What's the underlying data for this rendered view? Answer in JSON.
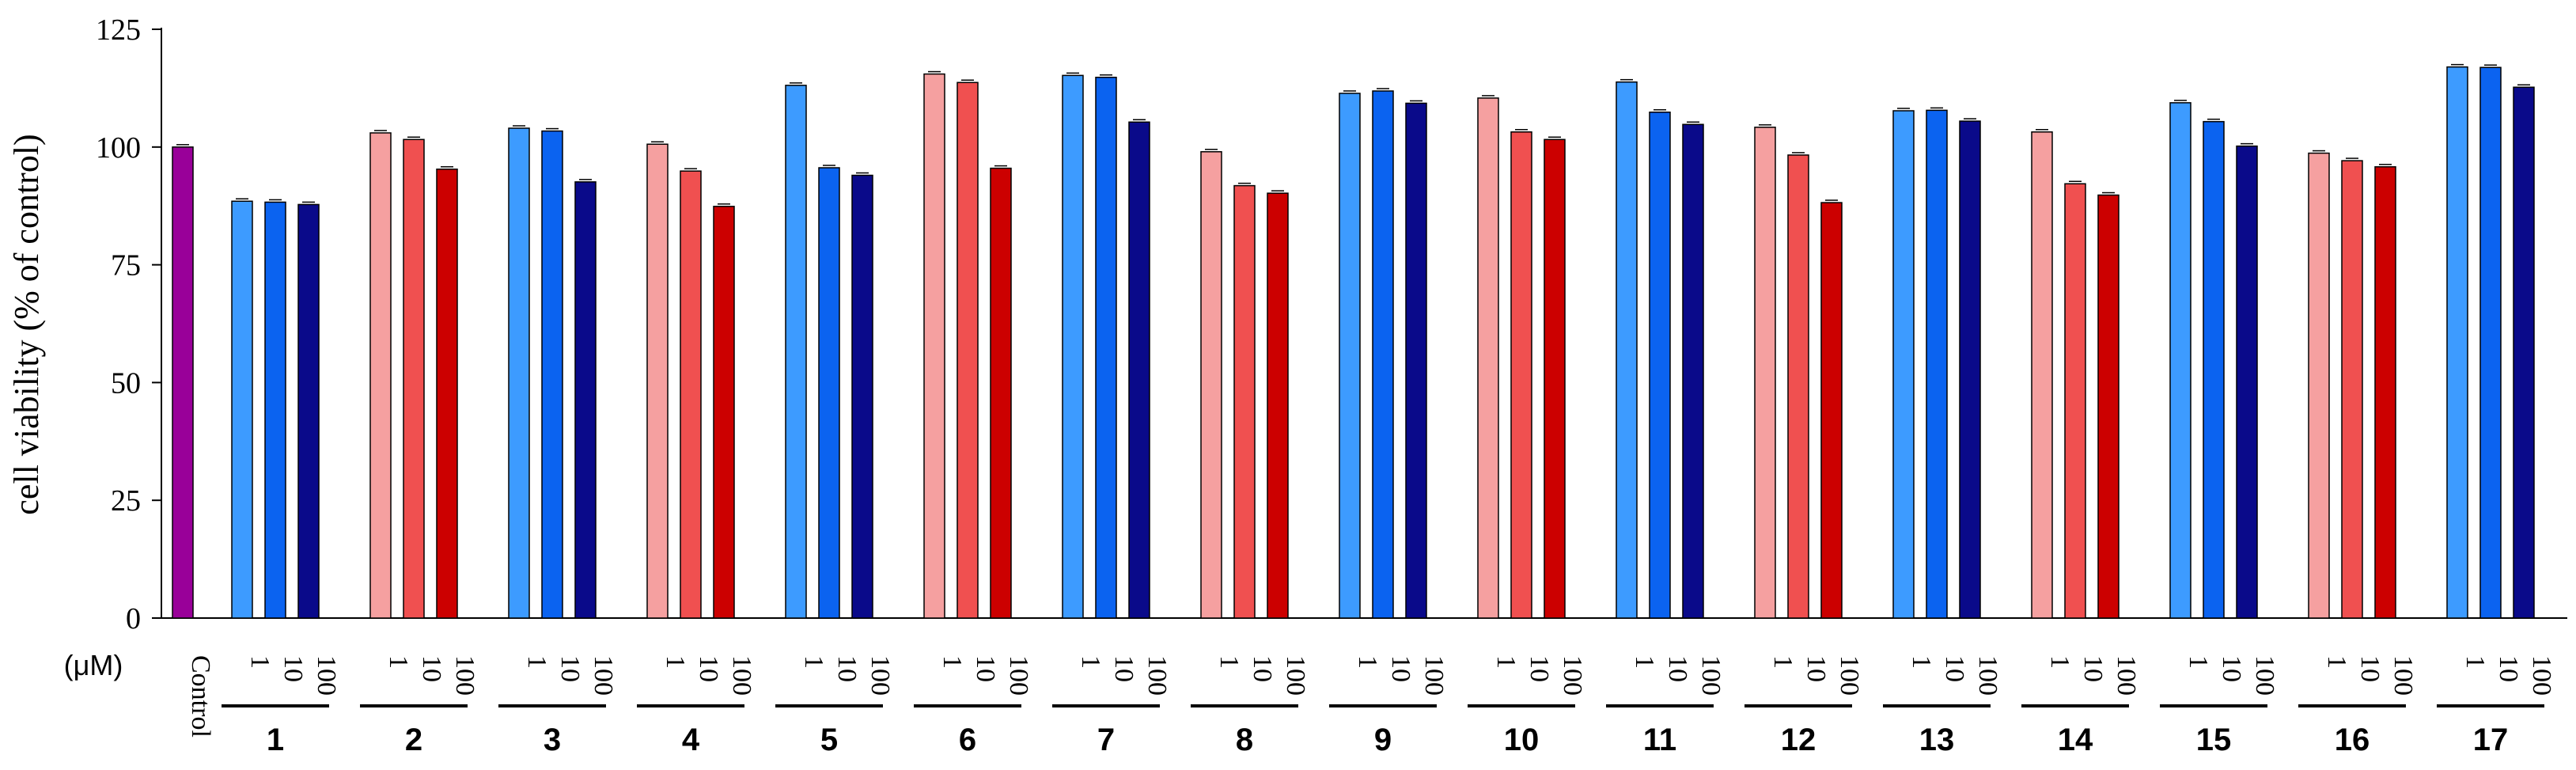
{
  "chart_data": {
    "type": "bar",
    "title": "",
    "xlabel": "",
    "ylabel": "cell viability (% of control)",
    "ylim": [
      0,
      125
    ],
    "yticks": [
      0,
      25,
      50,
      75,
      100,
      125
    ],
    "grid": false,
    "unit_label": "(μM)",
    "control": {
      "label": "Control",
      "value": 100,
      "color": "#990099"
    },
    "concentrations": [
      "1",
      "10",
      "100"
    ],
    "palettes": {
      "blue": [
        "#3d9bff",
        "#0b63f0",
        "#0a0a8a"
      ],
      "red": [
        "#f5a0a0",
        "#f05050",
        "#cc0000"
      ]
    },
    "groups": [
      {
        "label": "1",
        "palette": "blue",
        "values": [
          88.5,
          88.3,
          87.8
        ]
      },
      {
        "label": "2",
        "palette": "red",
        "values": [
          103.0,
          101.6,
          95.3
        ]
      },
      {
        "label": "3",
        "palette": "blue",
        "values": [
          104.0,
          103.4,
          92.6
        ]
      },
      {
        "label": "4",
        "palette": "red",
        "values": [
          100.6,
          94.9,
          87.4
        ]
      },
      {
        "label": "5",
        "palette": "blue",
        "values": [
          113.1,
          95.6,
          94.0
        ]
      },
      {
        "label": "6",
        "palette": "red",
        "values": [
          115.5,
          113.7,
          95.5
        ]
      },
      {
        "label": "7",
        "palette": "blue",
        "values": [
          115.2,
          114.8,
          105.3
        ]
      },
      {
        "label": "8",
        "palette": "red",
        "values": [
          99.0,
          91.8,
          90.2
        ]
      },
      {
        "label": "9",
        "palette": "blue",
        "values": [
          111.4,
          111.9,
          109.3
        ]
      },
      {
        "label": "10",
        "palette": "red",
        "values": [
          110.4,
          103.2,
          101.6
        ]
      },
      {
        "label": "11",
        "palette": "blue",
        "values": [
          113.8,
          107.4,
          104.8
        ]
      },
      {
        "label": "12",
        "palette": "red",
        "values": [
          104.2,
          98.3,
          88.2
        ]
      },
      {
        "label": "13",
        "palette": "blue",
        "values": [
          107.7,
          107.8,
          105.5
        ]
      },
      {
        "label": "14",
        "palette": "red",
        "values": [
          103.2,
          92.2,
          89.8
        ]
      },
      {
        "label": "15",
        "palette": "blue",
        "values": [
          109.4,
          105.4,
          100.2
        ]
      },
      {
        "label": "16",
        "palette": "red",
        "values": [
          98.7,
          97.1,
          95.8
        ]
      },
      {
        "label": "17",
        "palette": "blue",
        "values": [
          117.0,
          116.9,
          112.7
        ]
      }
    ]
  }
}
